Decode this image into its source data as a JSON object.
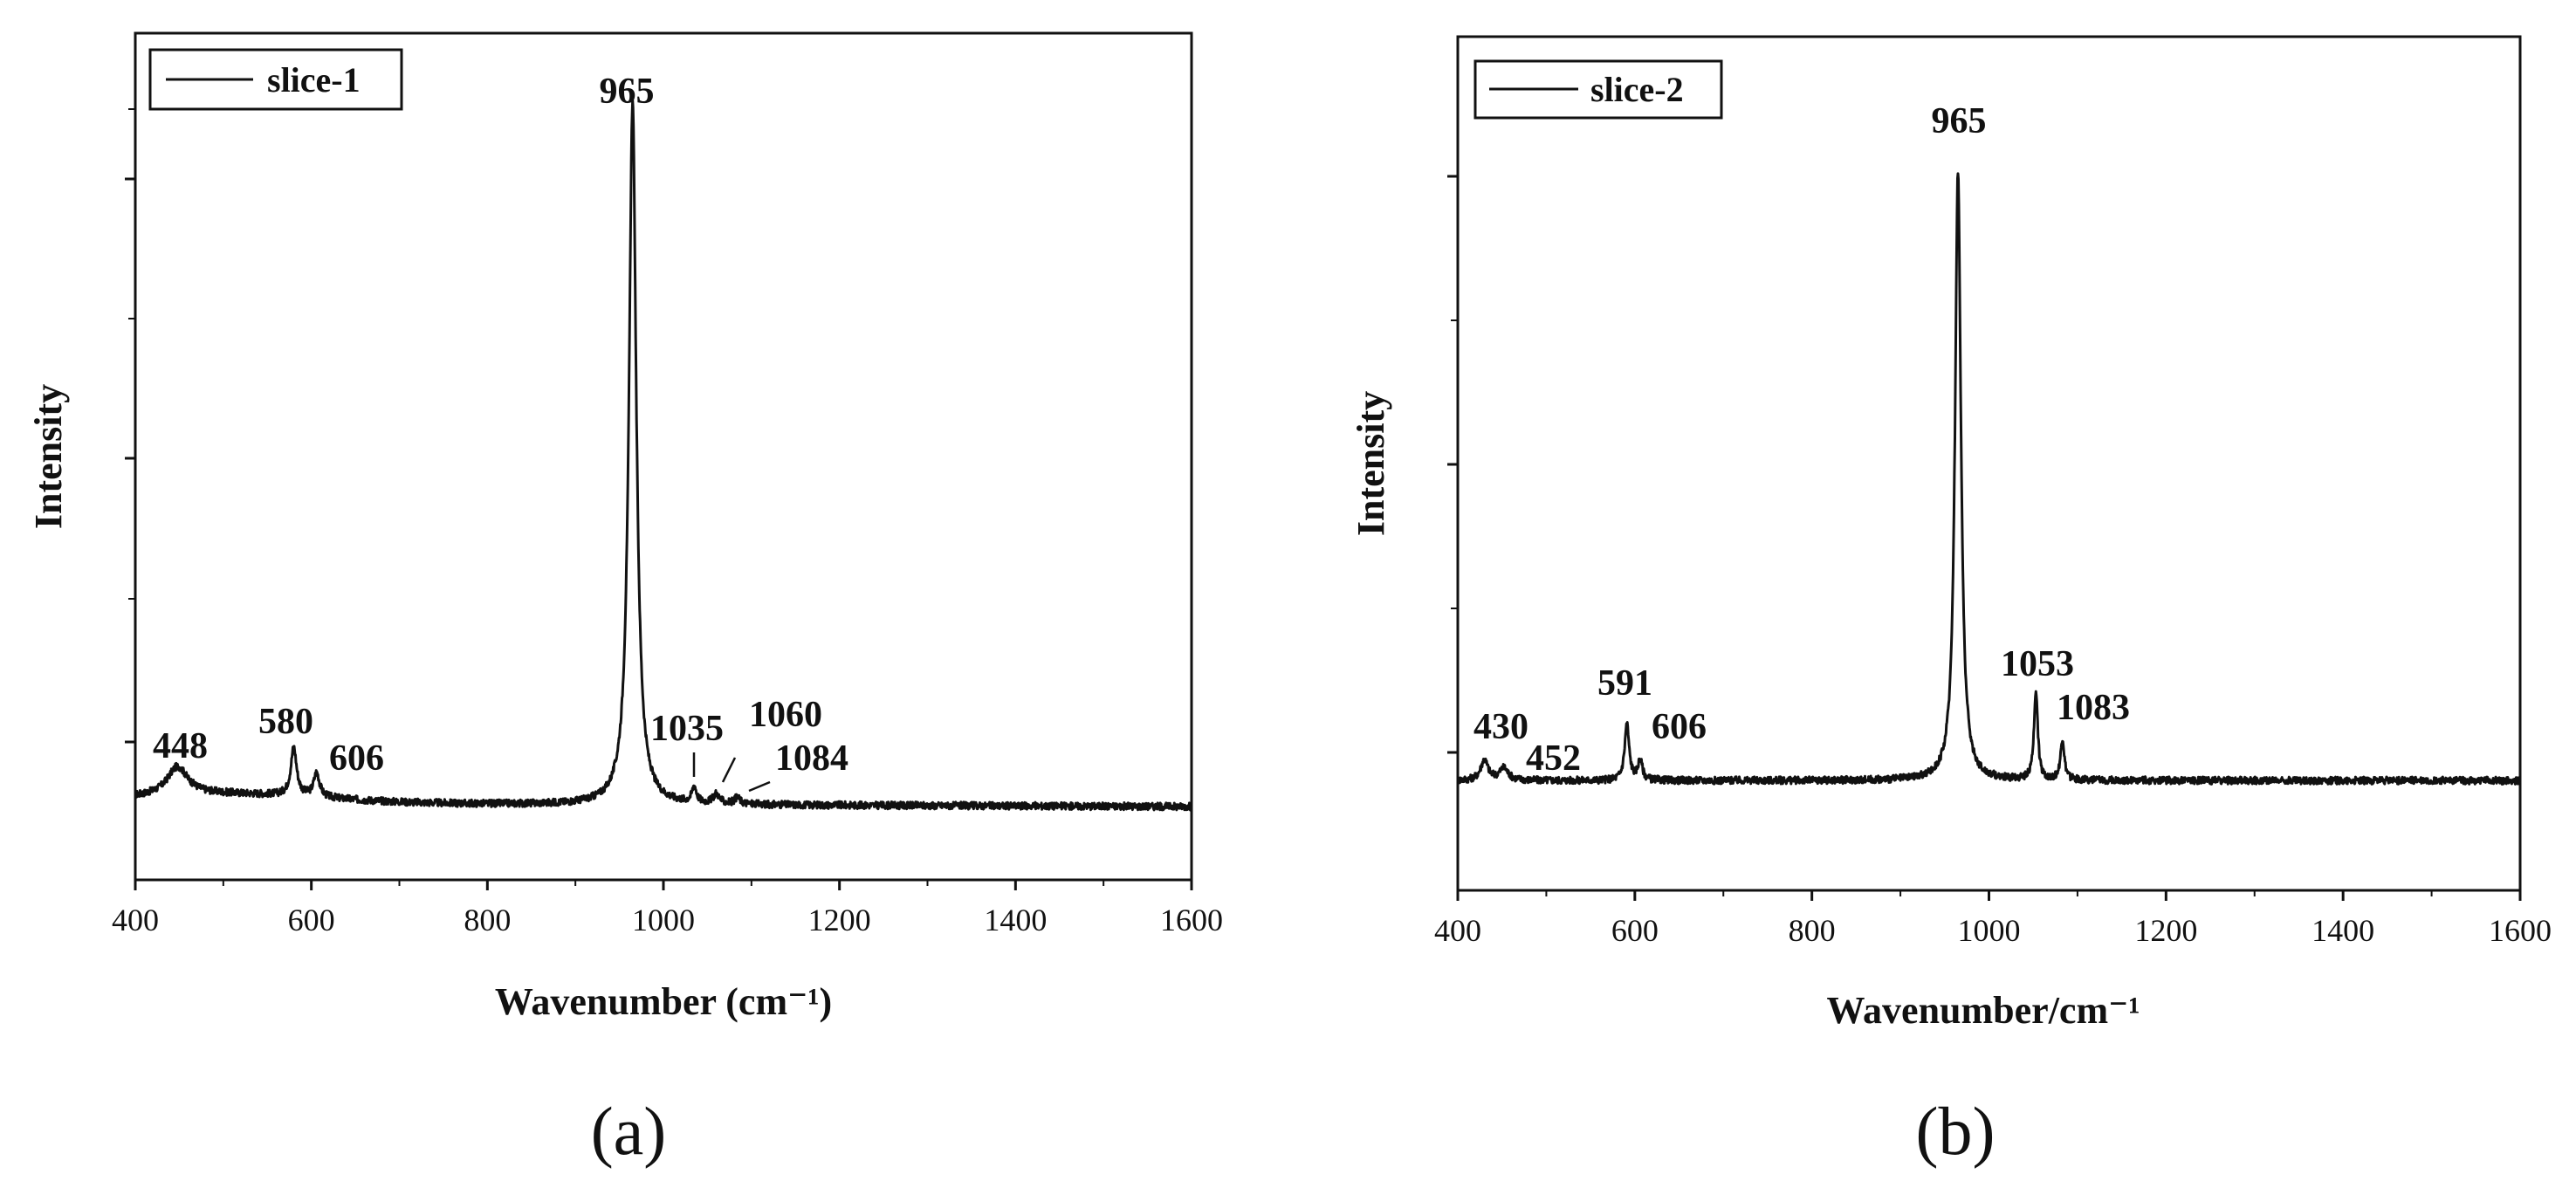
{
  "panels": [
    {
      "panel_label": "(a)",
      "legend": "slice-1",
      "xlabel": "Wavenumber (cm⁻¹)",
      "ylabel": "Intensity"
    },
    {
      "panel_label": "(b)",
      "legend": "slice-2",
      "xlabel": "Wavenumber/cm⁻¹",
      "ylabel": "Intensity"
    }
  ],
  "chart_data": [
    {
      "type": "line",
      "title": "",
      "xlabel": "Wavenumber (cm⁻¹)",
      "ylabel": "Intensity",
      "xlim": [
        400,
        1600
      ],
      "ylim": [
        0,
        1.05
      ],
      "xticks": [
        "400",
        "600",
        "800",
        "1000",
        "1200",
        "1400",
        "1600"
      ],
      "legend_position": "top-left",
      "grid": false,
      "series": [
        {
          "name": "slice-1",
          "baseline": 0.095,
          "peaks": [
            {
              "center": 448,
              "height": 0.035,
              "width": 14
            },
            {
              "center": 580,
              "height": 0.06,
              "width": 4
            },
            {
              "center": 606,
              "height": 0.03,
              "width": 4
            },
            {
              "center": 965,
              "height": 0.87,
              "width": 5
            },
            {
              "center": 1035,
              "height": 0.02,
              "width": 3
            },
            {
              "center": 1060,
              "height": 0.012,
              "width": 4
            },
            {
              "center": 1084,
              "height": 0.008,
              "width": 4
            }
          ]
        }
      ],
      "peak_labels": [
        {
          "label": "448",
          "x": 448
        },
        {
          "label": "580",
          "x": 580
        },
        {
          "label": "606",
          "x": 606
        },
        {
          "label": "965",
          "x": 965
        },
        {
          "label": "1035",
          "x": 1035
        },
        {
          "label": "1060",
          "x": 1060
        },
        {
          "label": "1084",
          "x": 1084
        }
      ]
    },
    {
      "type": "line",
      "title": "",
      "xlabel": "Wavenumber/cm⁻¹",
      "ylabel": "Intensity",
      "xlim": [
        400,
        1600
      ],
      "ylim": [
        0,
        1.05
      ],
      "xticks": [
        "400",
        "600",
        "800",
        "1000",
        "1200",
        "1400",
        "1600"
      ],
      "legend_position": "top-left",
      "grid": false,
      "series": [
        {
          "name": "slice-2",
          "baseline": 0.135,
          "peaks": [
            {
              "center": 430,
              "height": 0.025,
              "width": 5
            },
            {
              "center": 452,
              "height": 0.015,
              "width": 6
            },
            {
              "center": 591,
              "height": 0.07,
              "width": 3
            },
            {
              "center": 606,
              "height": 0.025,
              "width": 3
            },
            {
              "center": 965,
              "height": 0.75,
              "width": 4
            },
            {
              "center": 1053,
              "height": 0.11,
              "width": 2.5
            },
            {
              "center": 1083,
              "height": 0.05,
              "width": 2.5
            }
          ]
        }
      ],
      "peak_labels": [
        {
          "label": "430",
          "x": 430
        },
        {
          "label": "452",
          "x": 452
        },
        {
          "label": "591",
          "x": 591
        },
        {
          "label": "606",
          "x": 606
        },
        {
          "label": "965",
          "x": 965
        },
        {
          "label": "1053",
          "x": 1053
        },
        {
          "label": "1083",
          "x": 1083
        }
      ]
    }
  ]
}
